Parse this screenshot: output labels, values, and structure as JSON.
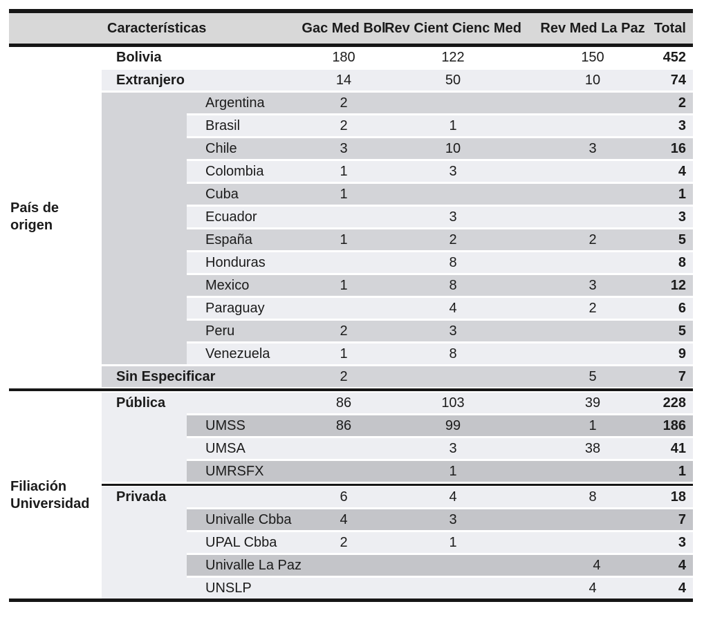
{
  "table": {
    "header": {
      "characteristics_label": "Características",
      "journal_columns": [
        "Gac Med Bol",
        "Rev Cient Cienc Med",
        "Rev Med La Paz"
      ],
      "total_label": "Total"
    },
    "colors": {
      "header_bg": "#d8d8d8",
      "light_row": "#edeef2",
      "medium_row": "#d3d4d8",
      "dark_row": "#c4c5c9",
      "border": "#161616"
    },
    "sections": [
      {
        "label": "País de origen",
        "blocks": [
          {
            "kind": "plain",
            "rows": [
              {
                "label": "Bolivia",
                "indent": 1,
                "bold": true,
                "shade": "white",
                "values": [
                  "180",
                  "122",
                  "150",
                  "452"
                ]
              },
              {
                "label": "Extranjero",
                "indent": 1,
                "bold": true,
                "shade": "light",
                "values": [
                  "14",
                  "50",
                  "10",
                  "74"
                ]
              }
            ]
          },
          {
            "kind": "band",
            "rows": [
              {
                "label": "Argentina",
                "indent": 2,
                "bold": false,
                "shade": "medium",
                "values": [
                  "2",
                  "",
                  "",
                  "2"
                ]
              },
              {
                "label": "Brasil",
                "indent": 2,
                "bold": false,
                "shade": "light",
                "values": [
                  "2",
                  "1",
                  "",
                  "3"
                ]
              },
              {
                "label": "Chile",
                "indent": 2,
                "bold": false,
                "shade": "medium",
                "values": [
                  "3",
                  "10",
                  "3",
                  "16"
                ]
              },
              {
                "label": "Colombia",
                "indent": 2,
                "bold": false,
                "shade": "light",
                "values": [
                  "1",
                  "3",
                  "",
                  "4"
                ]
              },
              {
                "label": "Cuba",
                "indent": 2,
                "bold": false,
                "shade": "medium",
                "values": [
                  "1",
                  "",
                  "",
                  "1"
                ]
              },
              {
                "label": "Ecuador",
                "indent": 2,
                "bold": false,
                "shade": "light",
                "values": [
                  "",
                  "3",
                  "",
                  "3"
                ]
              },
              {
                "label": "España",
                "indent": 2,
                "bold": false,
                "shade": "medium",
                "values": [
                  "1",
                  "2",
                  "2",
                  "5"
                ]
              },
              {
                "label": "Honduras",
                "indent": 2,
                "bold": false,
                "shade": "light",
                "values": [
                  "",
                  "8",
                  "",
                  "8"
                ]
              },
              {
                "label": "Mexico",
                "indent": 2,
                "bold": false,
                "shade": "medium",
                "values": [
                  "1",
                  "8",
                  "3",
                  "12"
                ]
              },
              {
                "label": "Paraguay",
                "indent": 2,
                "bold": false,
                "shade": "light",
                "values": [
                  "",
                  "4",
                  "2",
                  "6"
                ]
              },
              {
                "label": "Peru",
                "indent": 2,
                "bold": false,
                "shade": "medium",
                "values": [
                  "2",
                  "3",
                  "",
                  "5"
                ]
              },
              {
                "label": "Venezuela",
                "indent": 2,
                "bold": false,
                "shade": "light",
                "values": [
                  "1",
                  "8",
                  "",
                  "9"
                ]
              }
            ]
          },
          {
            "kind": "plain",
            "rows": [
              {
                "label": "Sin Especificar",
                "indent": 1,
                "bold": true,
                "shade": "medium",
                "values": [
                  "2",
                  "",
                  "5",
                  "7"
                ]
              }
            ]
          }
        ]
      },
      {
        "label": "Filiación Universidad",
        "blocks": [
          {
            "kind": "lightband",
            "rows": [
              {
                "label": "Pública",
                "indent": 1,
                "bold": true,
                "shade": "light",
                "values": [
                  "86",
                  "103",
                  "39",
                  "228"
                ]
              },
              {
                "label": "UMSS",
                "indent": 2,
                "bold": false,
                "shade": "dark",
                "values": [
                  "86",
                  "99",
                  "1",
                  "186"
                ]
              },
              {
                "label": "UMSA",
                "indent": 2,
                "bold": false,
                "shade": "light",
                "values": [
                  "",
                  "3",
                  "38",
                  "41"
                ]
              },
              {
                "label": "UMRSFX",
                "indent": 2,
                "bold": false,
                "shade": "dark",
                "values": [
                  "",
                  "1",
                  "",
                  "1"
                ]
              }
            ]
          },
          {
            "kind": "divider"
          },
          {
            "kind": "lightband",
            "rows": [
              {
                "label": "Privada",
                "indent": 1,
                "bold": true,
                "shade": "light",
                "values": [
                  "6",
                  "4",
                  "8",
                  "18"
                ]
              },
              {
                "label": "Univalle Cbba",
                "indent": 2,
                "bold": false,
                "shade": "dark",
                "values": [
                  "4",
                  "3",
                  "",
                  "7"
                ]
              },
              {
                "label": "UPAL Cbba",
                "indent": 2,
                "bold": false,
                "shade": "light",
                "values": [
                  "2",
                  "1",
                  "",
                  "3"
                ]
              },
              {
                "label": "Univalle La Paz",
                "indent": 2,
                "bold": false,
                "shade": "dark",
                "values": [
                  "",
                  "",
                  "4",
                  "4"
                ]
              },
              {
                "label": "UNSLP",
                "indent": 2,
                "bold": false,
                "shade": "light",
                "values": [
                  "",
                  "",
                  "4",
                  "4"
                ]
              }
            ]
          }
        ]
      }
    ]
  }
}
